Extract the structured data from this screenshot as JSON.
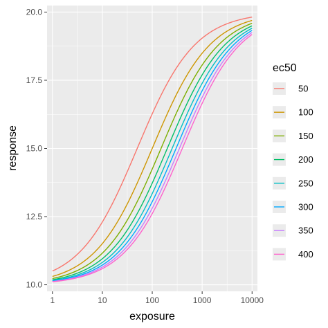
{
  "chart_data": {
    "type": "line",
    "title": "",
    "xlabel": "exposure",
    "ylabel": "response",
    "x_scale": "log10",
    "xlim": [
      0.78,
      12800
    ],
    "ylim": [
      9.76,
      20.24
    ],
    "x_ticks": [
      1,
      10,
      100,
      1000,
      10000
    ],
    "x_tick_labels": [
      "1",
      "10",
      "100",
      "1000",
      "10000"
    ],
    "y_ticks": [
      10.0,
      12.5,
      15.0,
      17.5,
      20.0
    ],
    "y_tick_labels": [
      "10.0",
      "12.5",
      "15.0",
      "17.5",
      "20.0"
    ],
    "grid": true,
    "legend": {
      "title": "ec50",
      "placement": "right"
    },
    "model": {
      "form": "response = bottom + (top - bottom) / (1 + (ec50 / exposure)^hill)",
      "bottom": 10,
      "top": 20,
      "hill": 0.75
    },
    "series": [
      {
        "name": "50",
        "ec50": 50,
        "color": "#F8766D"
      },
      {
        "name": "100",
        "ec50": 100,
        "color": "#CD9600"
      },
      {
        "name": "150",
        "ec50": 150,
        "color": "#7CAE00"
      },
      {
        "name": "200",
        "ec50": 200,
        "color": "#00BE67"
      },
      {
        "name": "250",
        "ec50": 250,
        "color": "#00BFC4"
      },
      {
        "name": "300",
        "ec50": 300,
        "color": "#00A9FF"
      },
      {
        "name": "350",
        "ec50": 350,
        "color": "#C77CFF"
      },
      {
        "name": "400",
        "ec50": 400,
        "color": "#FF61CC"
      }
    ]
  }
}
